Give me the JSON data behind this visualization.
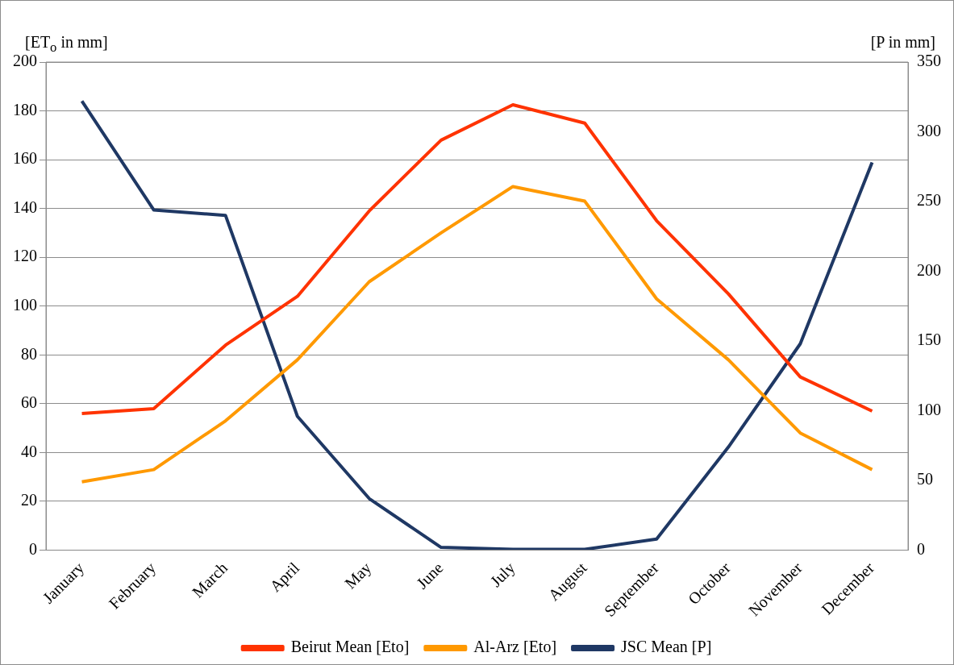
{
  "chart_data": {
    "type": "line",
    "ylabel": "[ET$_{o}$ in mm]",
    "y2label": "[P in mm]",
    "categories": [
      "January",
      "February",
      "March",
      "April",
      "May",
      "June",
      "July",
      "August",
      "September",
      "October",
      "November",
      "December"
    ],
    "ylim": [
      0,
      200
    ],
    "yticks": [
      0,
      20,
      40,
      60,
      80,
      100,
      120,
      140,
      160,
      180,
      200
    ],
    "y2lim": [
      0,
      350
    ],
    "y2ticks": [
      0,
      50,
      100,
      150,
      200,
      250,
      300,
      350
    ],
    "series": [
      {
        "name": "Beirut Mean [Eto]",
        "color": "#ff3300",
        "values": [
          56,
          58,
          84,
          104,
          139,
          168,
          182.5,
          175,
          135,
          105,
          71,
          57
        ]
      },
      {
        "name": "Al-Arz [Eto]",
        "color": "#ff9900",
        "values": [
          28,
          33,
          53,
          78,
          110,
          130,
          149,
          143,
          103,
          78,
          48,
          33
        ]
      },
      {
        "name": "JSC Mean [P]",
        "color": "#1f3864",
        "axis": "y2",
        "values": [
          322,
          244,
          240,
          96,
          37,
          2,
          0.6,
          0.6,
          8,
          74,
          148,
          278
        ]
      }
    ],
    "grid": "y",
    "legend": "bottom",
    "marker": "none",
    "line_style": "solid"
  }
}
